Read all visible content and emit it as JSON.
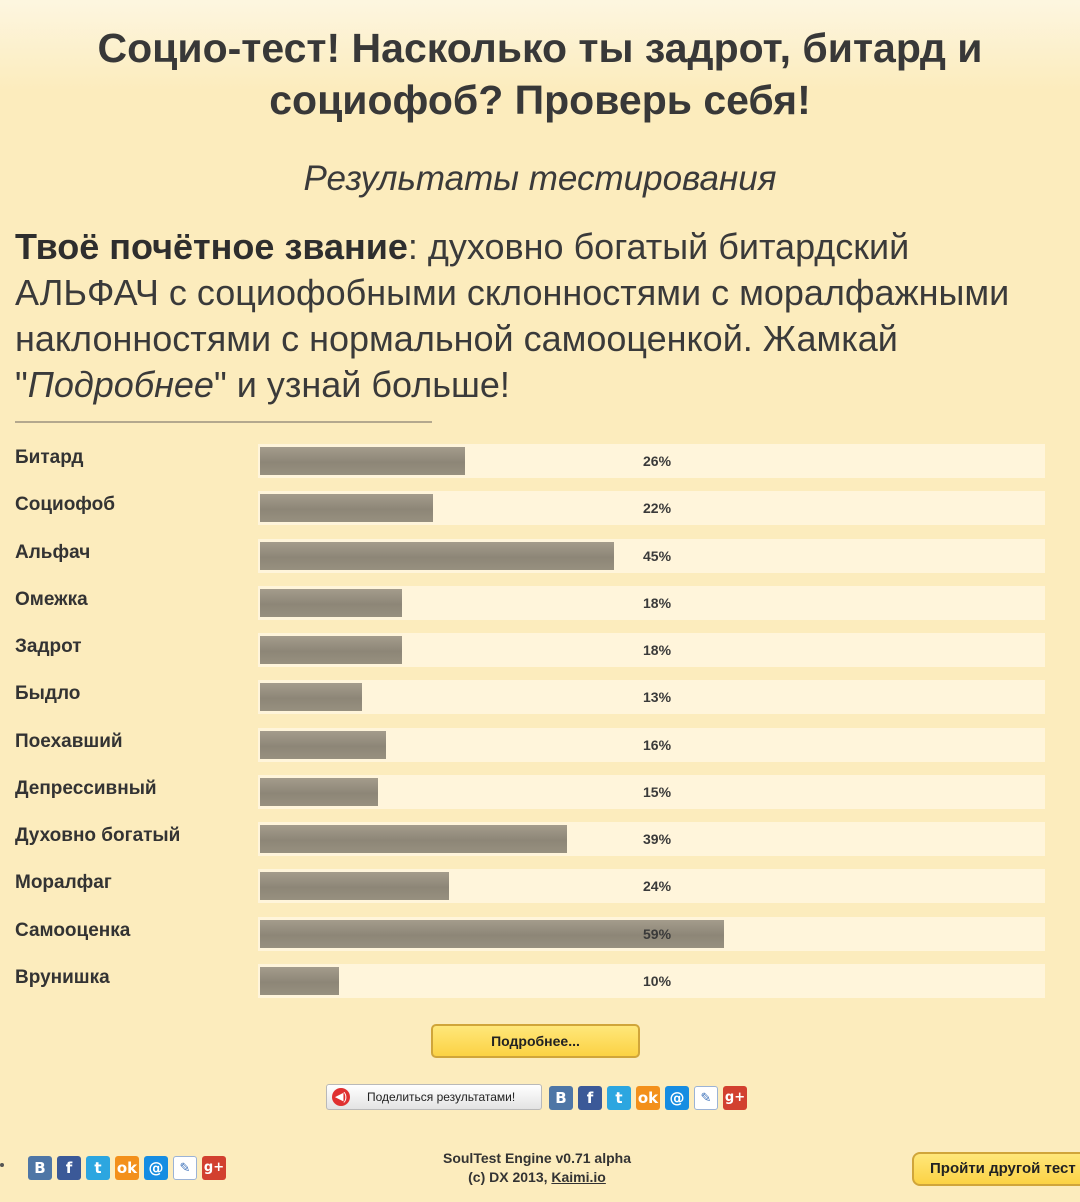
{
  "header": {
    "title_line1": "Социо-тест! Насколько ты задрот, битард и",
    "title_line2": "социофоб? Проверь себя!",
    "subtitle": "Результаты тестирования"
  },
  "result": {
    "label": "Твоё почётное звание",
    "text_part1": ": духовно богатый битардский АЛЬФАЧ с социофобными склонностями с моралфажными наклонностями с нормальной самооценкой. Жамкай \"",
    "emphasis": "Подробнее",
    "text_part2": "\" и узнай больше!"
  },
  "scales": [
    {
      "name": "Битард",
      "percent": 26,
      "percent_label": "26%"
    },
    {
      "name": "Социофоб",
      "percent": 22,
      "percent_label": "22%"
    },
    {
      "name": "Альфач",
      "percent": 45,
      "percent_label": "45%"
    },
    {
      "name": "Омежка",
      "percent": 18,
      "percent_label": "18%"
    },
    {
      "name": "Задрот",
      "percent": 18,
      "percent_label": "18%"
    },
    {
      "name": "Быдло",
      "percent": 13,
      "percent_label": "13%"
    },
    {
      "name": "Поехавший",
      "percent": 16,
      "percent_label": "16%"
    },
    {
      "name": "Депрессивный",
      "percent": 15,
      "percent_label": "15%"
    },
    {
      "name": "Духовно богатый",
      "percent": 39,
      "percent_label": "39%"
    },
    {
      "name": "Моралфаг",
      "percent": 24,
      "percent_label": "24%"
    },
    {
      "name": "Самооценка",
      "percent": 59,
      "percent_label": "59%"
    },
    {
      "name": "Врунишка",
      "percent": 10,
      "percent_label": "10%"
    }
  ],
  "buttons": {
    "more": "Подробнее...",
    "share": "Поделиться результатами!",
    "other_test": "Пройти другой тест"
  },
  "share_icons": [
    {
      "icon": "vk-icon",
      "glyph": "B"
    },
    {
      "icon": "facebook-icon",
      "glyph": "f"
    },
    {
      "icon": "twitter-icon",
      "glyph": "t"
    },
    {
      "icon": "odnoklassniki-icon",
      "glyph": "ok"
    },
    {
      "icon": "mailru-icon",
      "glyph": "@"
    },
    {
      "icon": "livejournal-icon",
      "glyph": "✎"
    },
    {
      "icon": "googleplus-icon",
      "glyph": "g+"
    }
  ],
  "footer": {
    "engine": "SoulTest Engine v0.71 alpha",
    "copyright": "(c) DX 2013, ",
    "link": "Kaimi.io"
  },
  "colors": {
    "background": "#fcecbd",
    "bar_fill": "#8d8677",
    "bar_track": "#fff5db",
    "button": "#fbd244"
  }
}
